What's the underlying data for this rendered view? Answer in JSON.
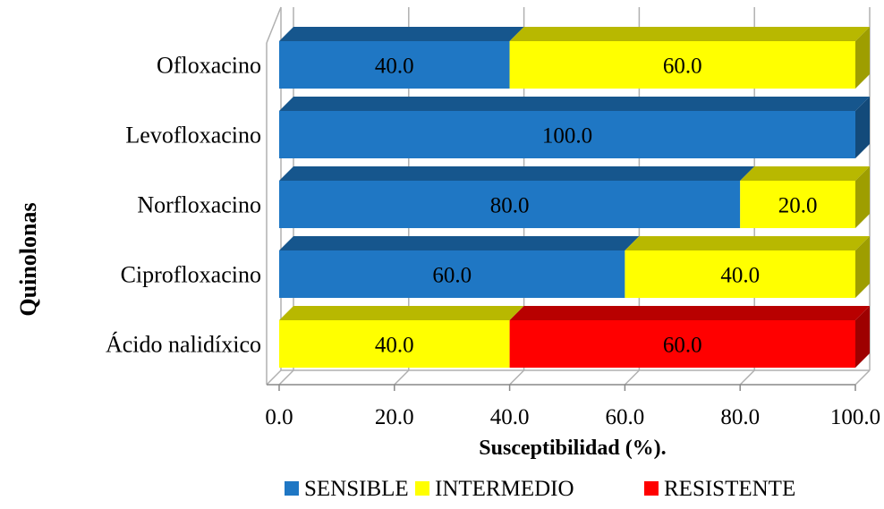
{
  "chart_data": {
    "type": "bar",
    "orientation": "horizontal",
    "stacked": true,
    "three_d": true,
    "categories": [
      "Ofloxacino",
      "Levofloxacino",
      "Norfloxacino",
      "Ciprofloxacino",
      "Ácido nalidíxico"
    ],
    "series": [
      {
        "name": "SENSIBLE",
        "values": [
          40.0,
          100.0,
          80.0,
          60.0,
          0.0
        ],
        "labels": [
          "40.0",
          "100.0",
          "80.0",
          "60.0",
          ""
        ]
      },
      {
        "name": "INTERMEDIO",
        "values": [
          60.0,
          0.0,
          20.0,
          40.0,
          40.0
        ],
        "labels": [
          "60.0",
          "",
          "20.0",
          "40.0",
          "40.0"
        ]
      },
      {
        "name": "RESISTENTE",
        "values": [
          0.0,
          0.0,
          0.0,
          0.0,
          60.0
        ],
        "labels": [
          "",
          "",
          "",
          "",
          "60.0"
        ]
      }
    ],
    "xlabel": "Susceptibilidad (%).",
    "ylabel": "Quinolonas",
    "xlim": [
      0,
      100
    ],
    "xticks": [
      "0.0",
      "20.0",
      "40.0",
      "60.0",
      "80.0",
      "100.0"
    ],
    "grid": "vertical",
    "legend": "bottom",
    "colors": {
      "SENSIBLE": "#1f77c4",
      "INTERMEDIO": "#ffff00",
      "RESISTENTE": "#ff0000"
    }
  }
}
